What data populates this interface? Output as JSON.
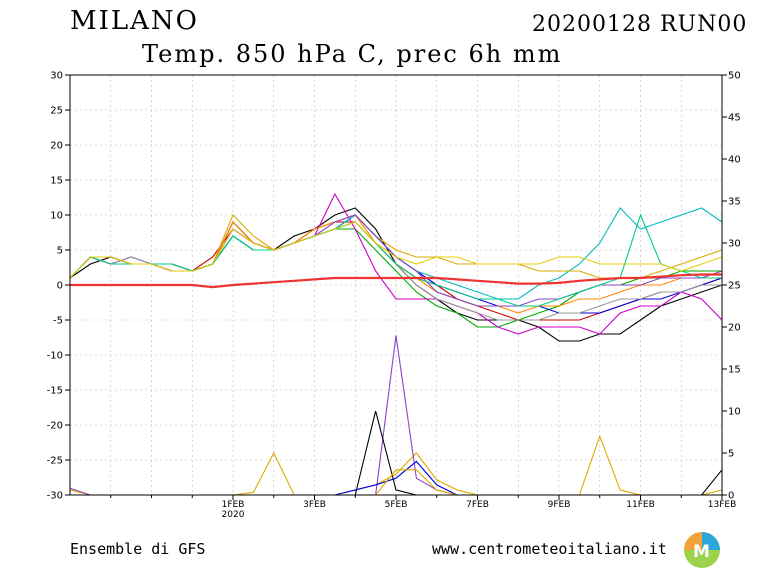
{
  "header": {
    "city": "MILANO",
    "run": "20200128 RUN00",
    "subtitle": "Temp. 850 hPa C, prec 6h mm"
  },
  "footer": {
    "left": "Ensemble di GFS",
    "right": "www.centrometeoitaliano.it"
  },
  "colors": {
    "member_palette": [
      "#000000",
      "#cc0000",
      "#00aa00",
      "#0000dd",
      "#cc00cc",
      "#00bbbb",
      "#ddaa00",
      "#ff8800",
      "#999999",
      "#8844cc",
      "#00cc88",
      "#e5cc00"
    ],
    "mean_line": "#ee3333",
    "grid": "#bbbbbb"
  },
  "chart_data": {
    "type": "line",
    "title": "Temp. 850 hPa C, prec 6h mm",
    "y_left_label": "",
    "y_right_label": "",
    "ylim_left": [
      -30,
      30
    ],
    "ylim_right": [
      0,
      50
    ],
    "y_left_ticks": [
      30,
      25,
      20,
      15,
      10,
      5,
      0,
      -5,
      -10,
      -15,
      -20,
      -25,
      -30
    ],
    "y_right_ticks": [
      50,
      45,
      40,
      35,
      30,
      25,
      20,
      15,
      10,
      5,
      0
    ],
    "x_unit": "day from 28 Jan 2020",
    "xlim": [
      0,
      16
    ],
    "x_ticks": [
      {
        "x": 4,
        "label": "1FEB",
        "sub": "2020"
      },
      {
        "x": 6,
        "label": "3FEB",
        "sub": ""
      },
      {
        "x": 8,
        "label": "5FEB",
        "sub": ""
      },
      {
        "x": 10,
        "label": "7FEB",
        "sub": ""
      },
      {
        "x": 12,
        "label": "9FEB",
        "sub": ""
      },
      {
        "x": 14,
        "label": "11FEB",
        "sub": ""
      },
      {
        "x": 16,
        "label": "13FEB",
        "sub": ""
      }
    ],
    "grid": true,
    "x": [
      0,
      0.5,
      1,
      1.5,
      2,
      2.5,
      3,
      3.5,
      4,
      4.5,
      5,
      5.5,
      6,
      6.5,
      7,
      7.5,
      8,
      8.5,
      9,
      9.5,
      10,
      10.5,
      11,
      11.5,
      12,
      12.5,
      13,
      13.5,
      14,
      14.5,
      15,
      15.5,
      16
    ],
    "temperature_series": [
      {
        "values": [
          1,
          3,
          4,
          3,
          3,
          2,
          2,
          3,
          9,
          6,
          5,
          7,
          8,
          10,
          11,
          8,
          3,
          0,
          -2,
          -4,
          -5,
          -5,
          -5,
          -6,
          -8,
          -8,
          -7,
          -7,
          -5,
          -3,
          -2,
          -1,
          0
        ]
      },
      {
        "values": [
          1,
          4,
          4,
          3,
          3,
          3,
          2,
          4,
          8,
          6,
          5,
          6,
          8,
          9,
          9,
          6,
          3,
          1,
          0,
          -2,
          -3,
          -4,
          -5,
          -5,
          -5,
          -5,
          -4,
          -3,
          -2,
          -1,
          -1,
          0,
          1
        ]
      },
      {
        "values": [
          1,
          4,
          3,
          3,
          3,
          2,
          2,
          3,
          7,
          5,
          5,
          6,
          7,
          8,
          8,
          5,
          2,
          -1,
          -3,
          -4,
          -6,
          -6,
          -5,
          -4,
          -3,
          -1,
          0,
          0,
          1,
          1,
          2,
          2,
          2
        ]
      },
      {
        "values": [
          1,
          4,
          3,
          4,
          3,
          3,
          2,
          3,
          7,
          5,
          5,
          6,
          7,
          8,
          10,
          7,
          4,
          2,
          0,
          -1,
          -2,
          -3,
          -3,
          -3,
          -4,
          -4,
          -4,
          -3,
          -2,
          -2,
          -1,
          0,
          1
        ]
      },
      {
        "values": [
          1,
          4,
          4,
          3,
          3,
          2,
          2,
          3,
          8,
          6,
          5,
          6,
          7,
          13,
          8,
          2,
          -2,
          -2,
          -2,
          -3,
          -4,
          -6,
          -7,
          -6,
          -6,
          -6,
          -7,
          -4,
          -3,
          -3,
          -1,
          -2,
          -5
        ]
      },
      {
        "values": [
          1,
          4,
          3,
          3,
          3,
          3,
          2,
          3,
          7,
          5,
          5,
          6,
          7,
          8,
          10,
          7,
          4,
          2,
          1,
          0,
          -1,
          -2,
          -2,
          0,
          1,
          3,
          6,
          11,
          8,
          9,
          10,
          11,
          9
        ]
      },
      {
        "values": [
          1,
          4,
          4,
          3,
          3,
          2,
          2,
          3,
          10,
          7,
          5,
          6,
          8,
          9,
          10,
          7,
          5,
          4,
          4,
          3,
          3,
          3,
          3,
          2,
          2,
          2,
          1,
          1,
          1,
          2,
          3,
          4,
          5
        ]
      },
      {
        "values": [
          1,
          4,
          3,
          3,
          3,
          3,
          2,
          3,
          9,
          6,
          5,
          6,
          8,
          9,
          10,
          6,
          3,
          1,
          -1,
          -2,
          -3,
          -3,
          -4,
          -3,
          -3,
          -2,
          -2,
          -1,
          0,
          0,
          1,
          1,
          2
        ]
      },
      {
        "values": [
          1,
          4,
          3,
          4,
          3,
          3,
          2,
          3,
          7,
          5,
          5,
          6,
          7,
          8,
          9,
          6,
          3,
          0,
          -2,
          -3,
          -4,
          -5,
          -5,
          -5,
          -4,
          -4,
          -3,
          -2,
          -2,
          -1,
          -1,
          0,
          0
        ]
      },
      {
        "values": [
          1,
          4,
          4,
          3,
          3,
          2,
          2,
          3,
          8,
          6,
          5,
          6,
          7,
          9,
          10,
          7,
          4,
          2,
          -1,
          -2,
          -3,
          -3,
          -3,
          -2,
          -2,
          -1,
          0,
          0,
          0,
          1,
          1,
          1,
          2
        ]
      },
      {
        "values": [
          1,
          4,
          3,
          3,
          3,
          3,
          2,
          3,
          7,
          5,
          5,
          6,
          7,
          8,
          9,
          6,
          3,
          1,
          0,
          -1,
          -2,
          -2,
          -3,
          -3,
          -2,
          -1,
          0,
          1,
          10,
          3,
          2,
          1,
          1
        ]
      },
      {
        "values": [
          1,
          4,
          4,
          3,
          3,
          2,
          2,
          3,
          8,
          6,
          5,
          6,
          7,
          8,
          9,
          6,
          4,
          3,
          4,
          4,
          3,
          3,
          3,
          3,
          4,
          4,
          3,
          3,
          3,
          3,
          2,
          3,
          4
        ]
      }
    ],
    "mean_temperature": {
      "values": [
        0,
        0,
        0,
        0,
        0,
        0,
        0,
        -0.3,
        0,
        0.2,
        0.4,
        0.6,
        0.8,
        1,
        1,
        1,
        1,
        1,
        1,
        0.8,
        0.6,
        0.4,
        0.2,
        0.2,
        0.3,
        0.6,
        0.8,
        1,
        1,
        1.2,
        1.4,
        1.5,
        1.5
      ]
    },
    "precipitation_series": [
      {
        "values": [
          0.6,
          0,
          0,
          0,
          0,
          0,
          0,
          0,
          0,
          0.3,
          5,
          0,
          0,
          0,
          0.6,
          1.2,
          2.5,
          5,
          1.8,
          0.6,
          0,
          0,
          0,
          0,
          0,
          0,
          0,
          0,
          0,
          0,
          0,
          0,
          0.6
        ]
      },
      {
        "values": [
          0.8,
          0,
          0,
          0,
          0,
          0,
          0,
          0,
          0,
          0,
          0,
          0,
          0,
          0,
          0,
          0,
          19,
          2,
          0.6,
          0,
          0,
          0,
          0,
          0,
          0,
          0,
          0,
          0,
          0,
          0,
          0,
          0,
          0
        ]
      },
      {
        "values": [
          0,
          0,
          0,
          0,
          0,
          0,
          0,
          0,
          0,
          0,
          0,
          0,
          0,
          0,
          0,
          10,
          0.6,
          0,
          0,
          0,
          0,
          0,
          0,
          0,
          0,
          0,
          0,
          0,
          0,
          0,
          0,
          0,
          3
        ]
      },
      {
        "values": [
          0,
          0,
          0,
          0,
          0,
          0,
          0,
          0,
          0,
          0,
          0,
          0,
          0,
          0,
          0.6,
          1.2,
          2,
          4,
          1.2,
          0,
          0,
          0,
          0,
          0,
          0,
          0,
          0,
          0,
          0,
          0,
          0,
          0,
          0
        ]
      },
      {
        "values": [
          0,
          0,
          0,
          0,
          0,
          0,
          0,
          0,
          0,
          0,
          0,
          0,
          0,
          0,
          0,
          0,
          3,
          3,
          0.6,
          0,
          0,
          0,
          0,
          0,
          0,
          0,
          7,
          0.6,
          0,
          0,
          0,
          0,
          0
        ]
      }
    ]
  }
}
